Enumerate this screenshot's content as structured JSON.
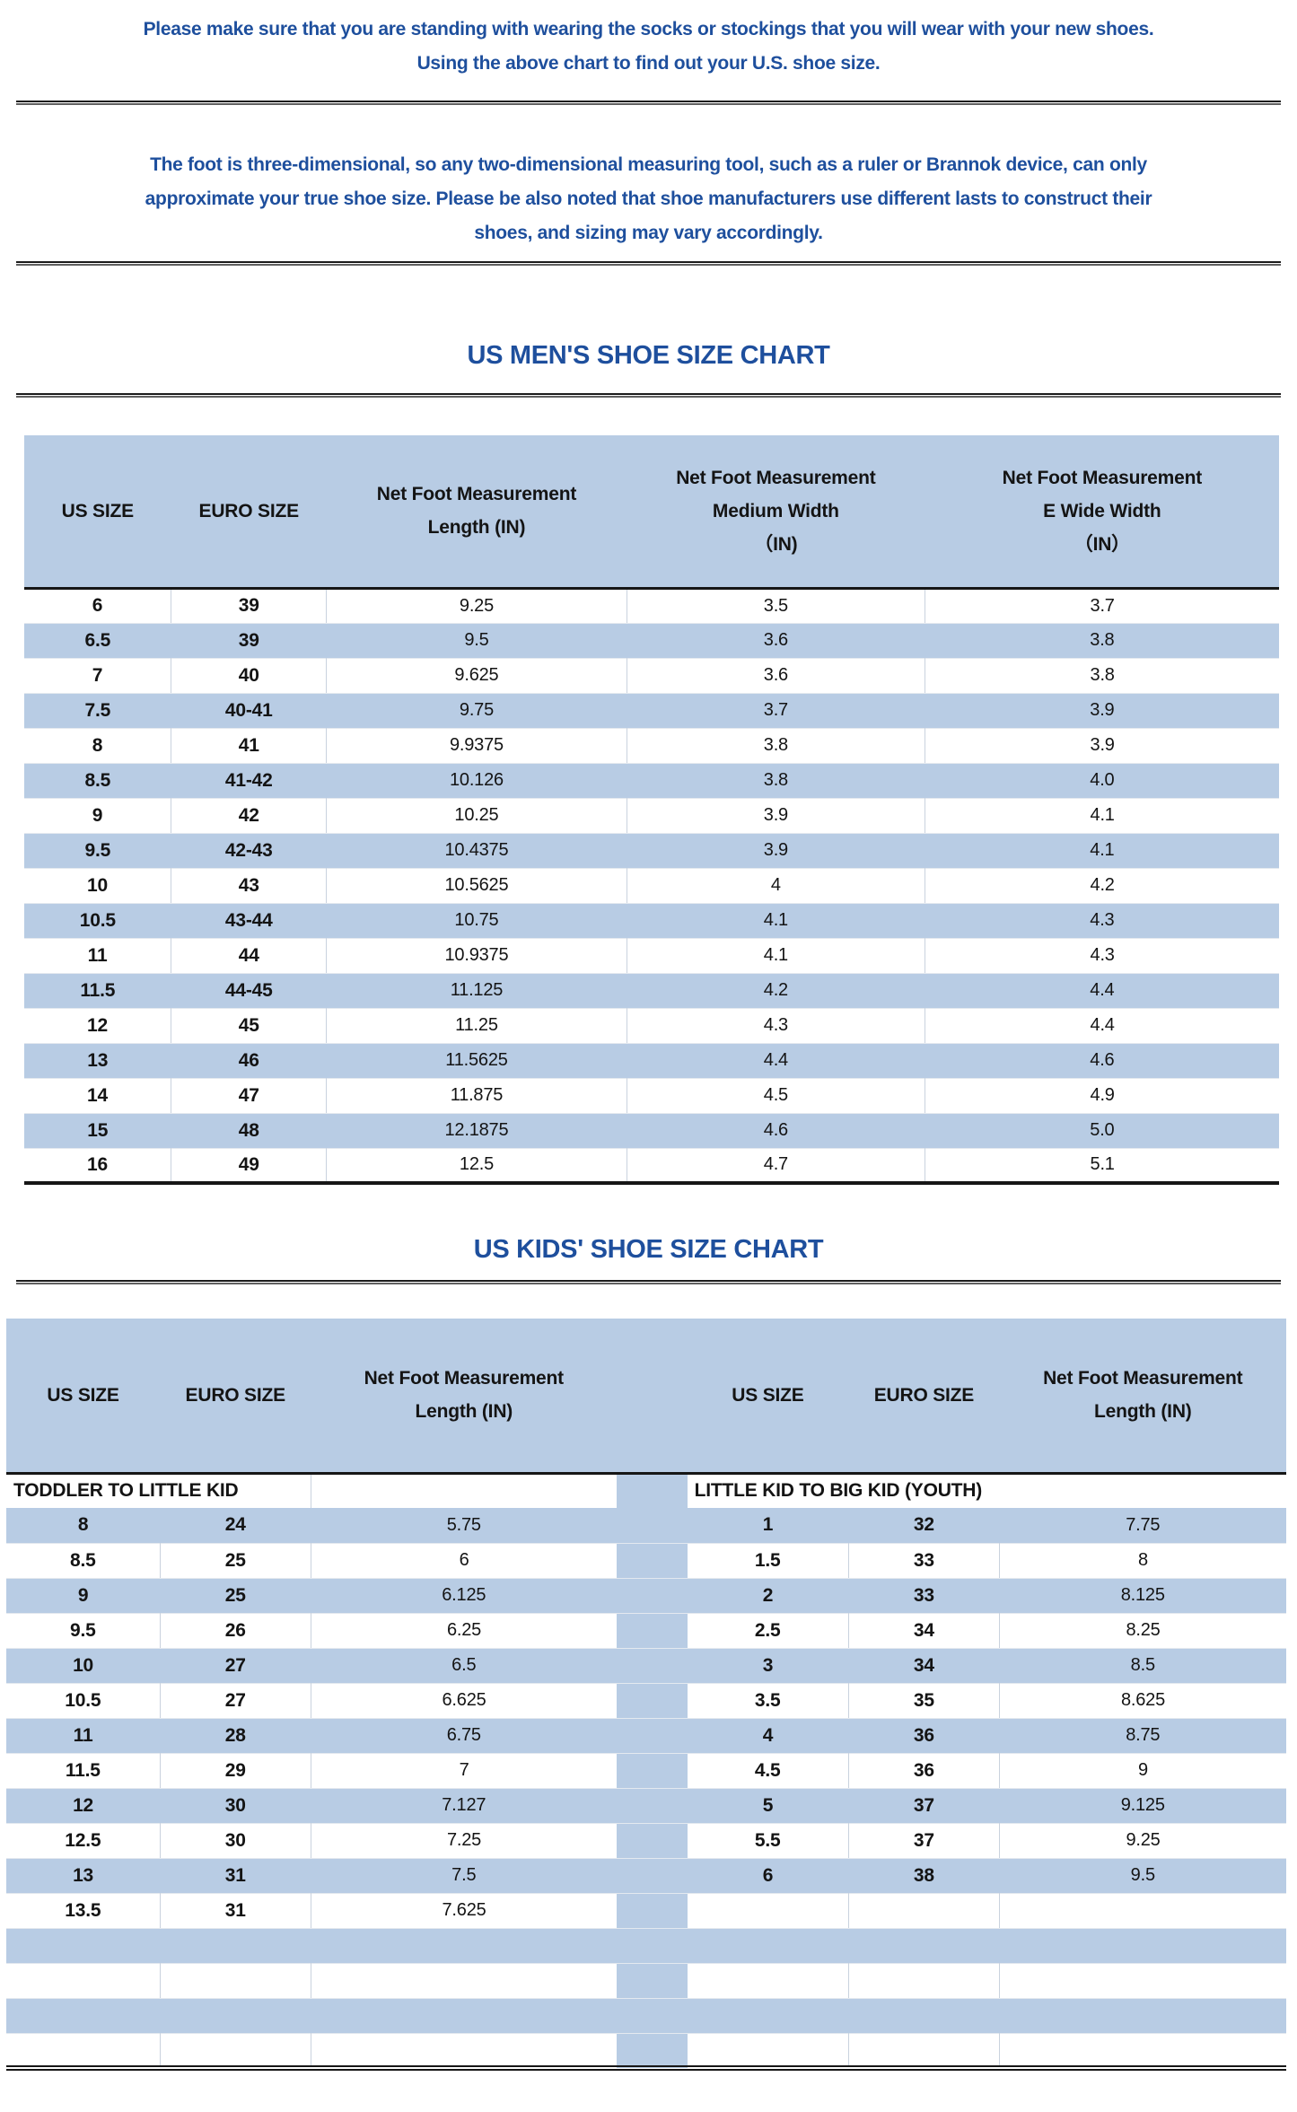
{
  "colors": {
    "band": "#b8cce4",
    "accent": "#1e4f9d"
  },
  "intro": {
    "note1": "Please make sure that you are standing with wearing the socks or stockings that you will wear with your new shoes.\nUsing the above chart to find out your U.S. shoe size.",
    "note2": "The foot is three-dimensional, so any two-dimensional measuring tool, such as a ruler or Brannok device, can only\napproximate your true shoe size. Please be also noted that shoe manufacturers use different lasts to construct their\nshoes, and sizing may vary accordingly."
  },
  "mens": {
    "title": "US MEN'S SHOE SIZE CHART",
    "headers": [
      "US SIZE",
      "EURO SIZE",
      "Net Foot Measurement\nLength (IN)",
      "Net Foot Measurement\nMedium Width\n（IN)",
      "Net Foot Measurement\nE Wide Width\n（IN）"
    ],
    "rows": [
      [
        "6",
        "39",
        "9.25",
        "3.5",
        "3.7"
      ],
      [
        "6.5",
        "39",
        "9.5",
        "3.6",
        "3.8"
      ],
      [
        "7",
        "40",
        "9.625",
        "3.6",
        "3.8"
      ],
      [
        "7.5",
        "40-41",
        "9.75",
        "3.7",
        "3.9"
      ],
      [
        "8",
        "41",
        "9.9375",
        "3.8",
        "3.9"
      ],
      [
        "8.5",
        "41-42",
        "10.126",
        "3.8",
        "4.0"
      ],
      [
        "9",
        "42",
        "10.25",
        "3.9",
        "4.1"
      ],
      [
        "9.5",
        "42-43",
        "10.4375",
        "3.9",
        "4.1"
      ],
      [
        "10",
        "43",
        "10.5625",
        "4",
        "4.2"
      ],
      [
        "10.5",
        "43-44",
        "10.75",
        "4.1",
        "4.3"
      ],
      [
        "11",
        "44",
        "10.9375",
        "4.1",
        "4.3"
      ],
      [
        "11.5",
        "44-45",
        "11.125",
        "4.2",
        "4.4"
      ],
      [
        "12",
        "45",
        "11.25",
        "4.3",
        "4.4"
      ],
      [
        "13",
        "46",
        "11.5625",
        "4.4",
        "4.6"
      ],
      [
        "14",
        "47",
        "11.875",
        "4.5",
        "4.9"
      ],
      [
        "15",
        "48",
        "12.1875",
        "4.6",
        "5.0"
      ],
      [
        "16",
        "49",
        "12.5",
        "4.7",
        "5.1"
      ]
    ]
  },
  "kids": {
    "title": "US KIDS' SHOE SIZE CHART",
    "headers": [
      "US SIZE",
      "EURO SIZE",
      "Net Foot Measurement\nLength (IN)",
      "US SIZE",
      "EURO SIZE",
      "Net Foot Measurement\nLength (IN)"
    ],
    "group_left": "TODDLER TO LITTLE KID",
    "group_right": "LITTLE KID TO BIG KID (YOUTH)",
    "rows": [
      {
        "left": [
          "8",
          "24",
          "5.75"
        ],
        "right": [
          "1",
          "32",
          "7.75"
        ]
      },
      {
        "left": [
          "8.5",
          "25",
          "6"
        ],
        "right": [
          "1.5",
          "33",
          "8"
        ]
      },
      {
        "left": [
          "9",
          "25",
          "6.125"
        ],
        "right": [
          "2",
          "33",
          "8.125"
        ]
      },
      {
        "left": [
          "9.5",
          "26",
          "6.25"
        ],
        "right": [
          "2.5",
          "34",
          "8.25"
        ]
      },
      {
        "left": [
          "10",
          "27",
          "6.5"
        ],
        "right": [
          "3",
          "34",
          "8.5"
        ]
      },
      {
        "left": [
          "10.5",
          "27",
          "6.625"
        ],
        "right": [
          "3.5",
          "35",
          "8.625"
        ]
      },
      {
        "left": [
          "11",
          "28",
          "6.75"
        ],
        "right": [
          "4",
          "36",
          "8.75"
        ]
      },
      {
        "left": [
          "11.5",
          "29",
          "7"
        ],
        "right": [
          "4.5",
          "36",
          "9"
        ]
      },
      {
        "left": [
          "12",
          "30",
          "7.127"
        ],
        "right": [
          "5",
          "37",
          "9.125"
        ]
      },
      {
        "left": [
          "12.5",
          "30",
          "7.25"
        ],
        "right": [
          "5.5",
          "37",
          "9.25"
        ]
      },
      {
        "left": [
          "13",
          "31",
          "7.5"
        ],
        "right": [
          "6",
          "38",
          "9.5"
        ]
      },
      {
        "left": [
          "13.5",
          "31",
          "7.625"
        ],
        "right": [
          "",
          "",
          ""
        ]
      }
    ],
    "empty_row_count": 4
  }
}
